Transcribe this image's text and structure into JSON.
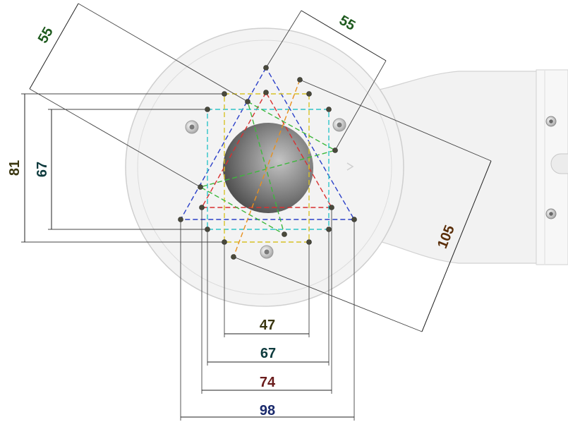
{
  "colors": {
    "bracket_fill": "#f3f3f3",
    "bracket_edge": "#cfcfcf",
    "hole_dark": "#3c3c3c",
    "hole_light": "#b5b5b5",
    "pattern_98": "#2a3fc8",
    "pattern_74": "#d83030",
    "pattern_67": "#2ec3c8",
    "pattern_47": "#d8c228",
    "pattern_55": "#3db83d",
    "pattern_105": "#e8901e"
  },
  "dimensions": {
    "d98": "98",
    "d74": "74",
    "d67_bottom": "67",
    "d47": "47",
    "d81": "81",
    "d67_left": "67",
    "d55_left": "55",
    "d55_right": "55",
    "d105": "105"
  },
  "dimension_colors": {
    "d98": "#1a2a6c",
    "d74": "#6a1c1c",
    "d67_bottom": "#0e3b3e",
    "d47": "#3a3610",
    "d81": "#3a3610",
    "d67_left": "#0e3b3e",
    "d55_left": "#1e5a1e",
    "d55_right": "#1e5a1e",
    "d105": "#5a2e08"
  }
}
